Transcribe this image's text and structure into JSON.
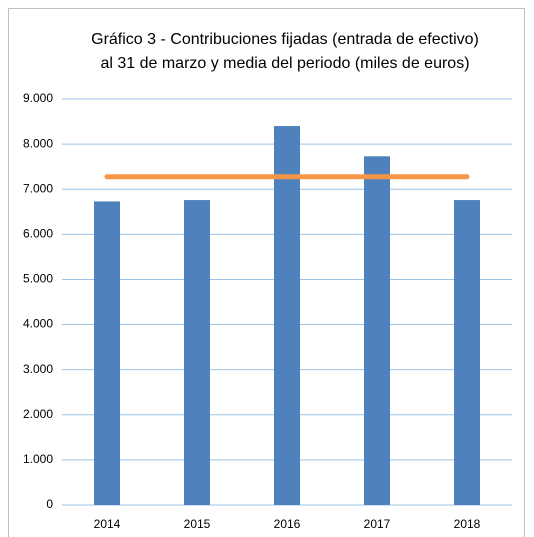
{
  "chart_data": {
    "type": "bar",
    "title": "Gráfico 3 - Contribuciones fijadas (entrada de efectivo) al 31 de marzo y media del periodo (miles de euros)",
    "categories": [
      "2014",
      "2015",
      "2016",
      "2017",
      "2018"
    ],
    "series": [
      {
        "type": "bar",
        "color": "#4f81bd",
        "values": [
          6730,
          6760,
          8400,
          7730,
          6760
        ]
      },
      {
        "type": "line",
        "color": "#f79646",
        "values": [
          7276,
          7276,
          7276,
          7276,
          7276
        ]
      }
    ],
    "ylim": [
      0,
      9000
    ],
    "yticks": [
      0,
      {
        "value": 1000,
        "label": "1.000"
      },
      {
        "value": 2000,
        "label": "2.000"
      },
      {
        "value": 3000,
        "label": "3.000"
      },
      {
        "value": 4000,
        "label": "4.000"
      },
      {
        "value": 5000,
        "label": "5.000"
      },
      {
        "value": 6000,
        "label": "6.000"
      },
      {
        "value": 7000,
        "label": "7.000"
      },
      {
        "value": 8000,
        "label": "8.000"
      },
      {
        "value": 9000,
        "label": "9.000"
      }
    ],
    "grid": true
  }
}
